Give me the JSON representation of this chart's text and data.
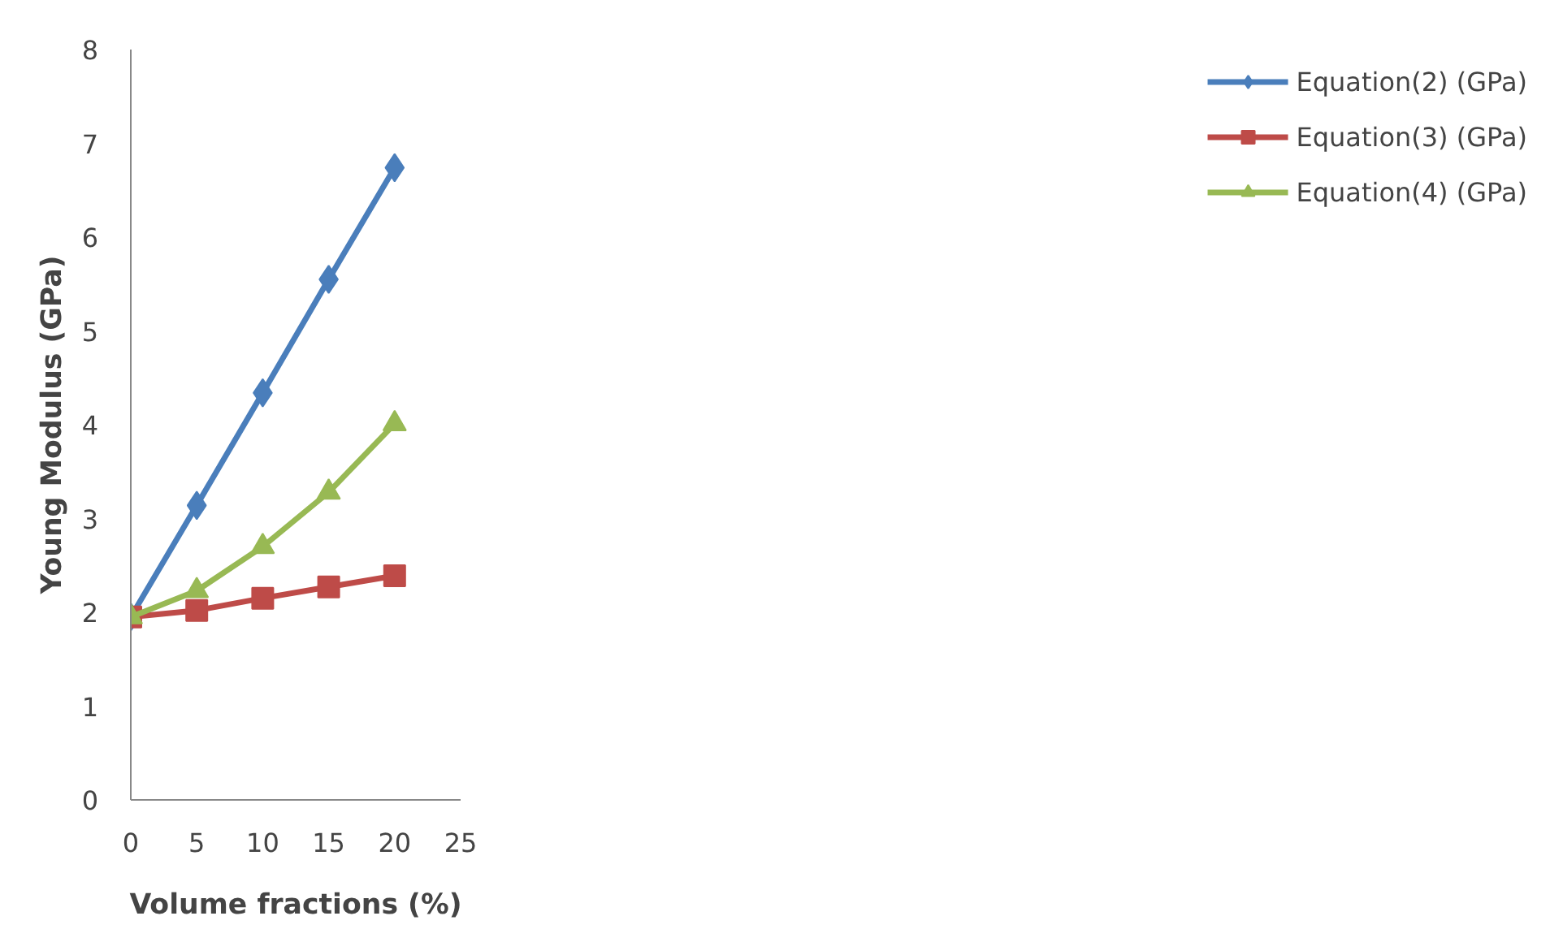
{
  "chart_data": {
    "type": "line",
    "xlabel": "Volume fractions (%)",
    "ylabel": "Young Modulus (GPa)",
    "x": [
      0,
      5,
      10,
      15,
      20
    ],
    "series": [
      {
        "name": "Equation(2) (GPa)",
        "color": "#4a7ebb",
        "marker": "diamond",
        "values": [
          1.95,
          3.14,
          4.34,
          5.55,
          6.74
        ]
      },
      {
        "name": "Equation(3) (GPa)",
        "color": "#be4b48",
        "marker": "square",
        "values": [
          1.95,
          2.02,
          2.15,
          2.27,
          2.39
        ]
      },
      {
        "name": "Equation(4) (GPa)",
        "color": "#98b954",
        "marker": "triangle",
        "values": [
          1.95,
          2.23,
          2.7,
          3.28,
          4.01
        ]
      }
    ],
    "xlim": [
      0,
      25
    ],
    "xticks": [
      0,
      5,
      10,
      15,
      20,
      25
    ],
    "ylim": [
      0,
      8
    ],
    "yticks": [
      0,
      1,
      2,
      3,
      4,
      5,
      6,
      7,
      8
    ],
    "grid": false,
    "legend": "right",
    "line_style": "solid"
  }
}
